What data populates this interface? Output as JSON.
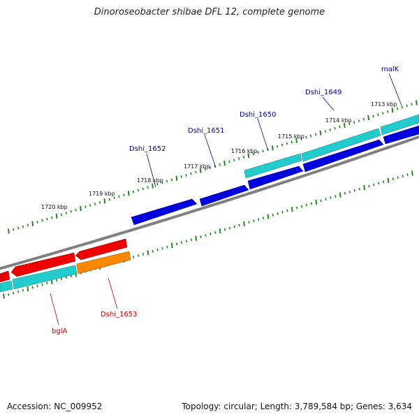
{
  "title": "Dinoroseobacter shibae DFL 12, complete genome",
  "footer": {
    "accession": "Accession: NC_009952",
    "summary": "Topology: circular; Length: 3,789,584 bp; Genes: 3,634"
  },
  "colors": {
    "forward_gene": "#0000dd",
    "reverse_gene": "#ee0000",
    "forward_cds": "#22cccc",
    "orange_gene": "#ff8800",
    "backbone": "#808080",
    "tick": "#228822",
    "label_forward": "#0000aa",
    "label_reverse": "#cc0000"
  },
  "kbp_labels": [
    "1713 kbp",
    "1714 kbp",
    "1715 kbp",
    "1716 kbp",
    "1717 kbp",
    "1718 kbp",
    "1719 kbp",
    "1720 kbp"
  ],
  "gene_labels": [
    {
      "name": "malK",
      "strand": "forward"
    },
    {
      "name": "Dshi_1649",
      "strand": "forward"
    },
    {
      "name": "Dshi_1650",
      "strand": "forward"
    },
    {
      "name": "Dshi_1651",
      "strand": "forward"
    },
    {
      "name": "Dshi_1652",
      "strand": "forward"
    },
    {
      "name": "Dshi_1653",
      "strand": "reverse"
    },
    {
      "name": "bglA",
      "strand": "reverse"
    }
  ]
}
